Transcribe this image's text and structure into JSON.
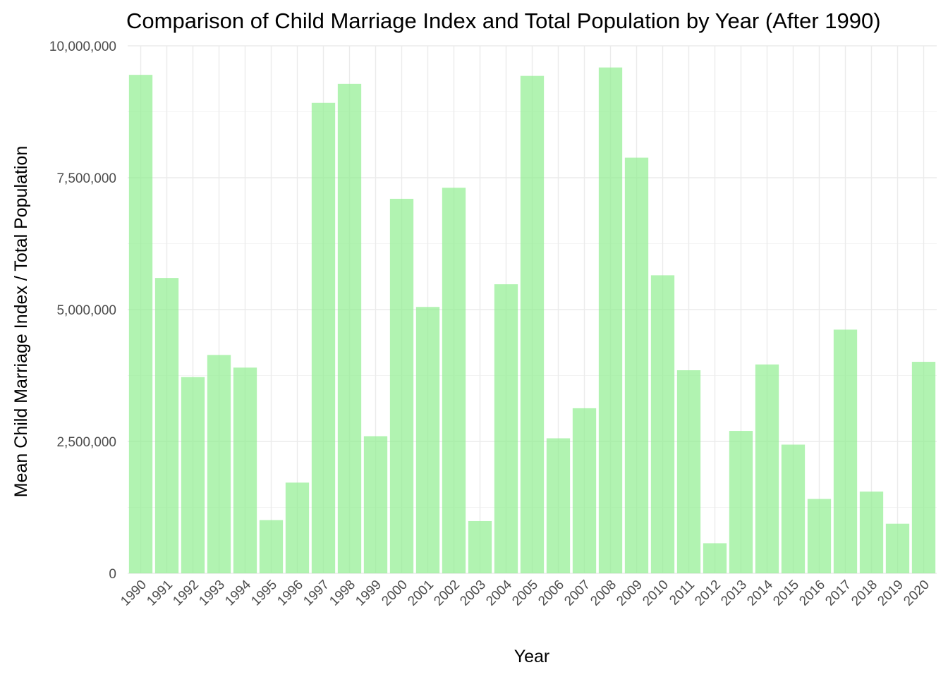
{
  "chart_data": {
    "type": "bar",
    "title": "Comparison of Child Marriage Index and Total Population by Year (After 1990)",
    "xlabel": "Year",
    "ylabel": "Mean Child Marriage Index / Total Population",
    "categories": [
      "1990",
      "1991",
      "1992",
      "1993",
      "1994",
      "1995",
      "1996",
      "1997",
      "1998",
      "1999",
      "2000",
      "2001",
      "2002",
      "2003",
      "2004",
      "2005",
      "2006",
      "2007",
      "2008",
      "2009",
      "2010",
      "2011",
      "2012",
      "2013",
      "2014",
      "2015",
      "2016",
      "2017",
      "2018",
      "2019",
      "2020"
    ],
    "values": [
      9450000,
      5600000,
      3720000,
      4140000,
      3900000,
      1010000,
      1720000,
      8920000,
      9280000,
      2600000,
      7100000,
      5050000,
      7310000,
      990000,
      5480000,
      9430000,
      2560000,
      3130000,
      9590000,
      7880000,
      5650000,
      3850000,
      570000,
      2700000,
      3960000,
      2440000,
      1410000,
      4620000,
      1550000,
      940000,
      4010000
    ],
    "ylim": [
      0,
      10000000
    ],
    "y_ticks": [
      0,
      2500000,
      5000000,
      7500000,
      10000000
    ],
    "y_tick_labels": [
      "0",
      "2,500,000",
      "5,000,000",
      "7,500,000",
      "10,000,000"
    ],
    "grid": true,
    "legend": "none",
    "bar_color": "#90ee90"
  }
}
